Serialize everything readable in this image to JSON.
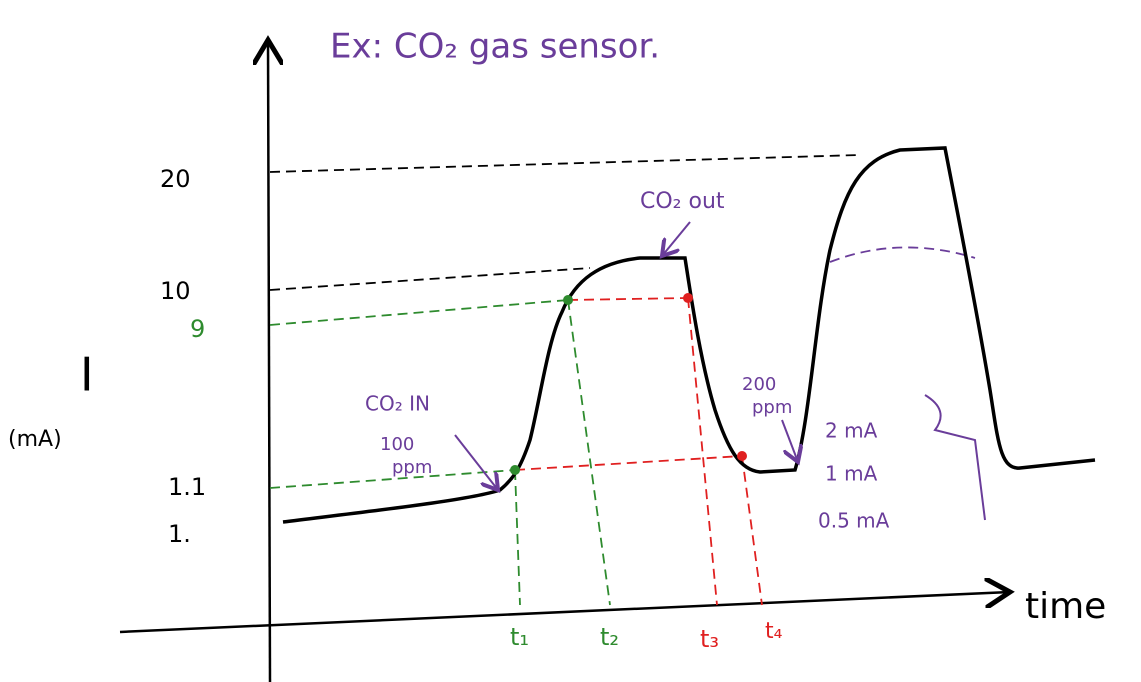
{
  "title": "Ex: CO₂ gas sensor.",
  "y_axis": {
    "symbol": "I",
    "unit": "(mA)",
    "labels": [
      "20",
      "10",
      "9",
      "1.1",
      "1."
    ]
  },
  "x_axis": {
    "label": "time",
    "times": [
      "t₁",
      "t₂",
      "t₃",
      "t₄"
    ]
  },
  "annotations": {
    "co2_out": "CO₂ out",
    "co2_in": "CO₂ IN",
    "in_ppm": [
      "100",
      "ppm"
    ],
    "out_ppm": [
      "200",
      "ppm"
    ],
    "currents": [
      "2 mA",
      "1 mA",
      "0.5 mA"
    ]
  }
}
